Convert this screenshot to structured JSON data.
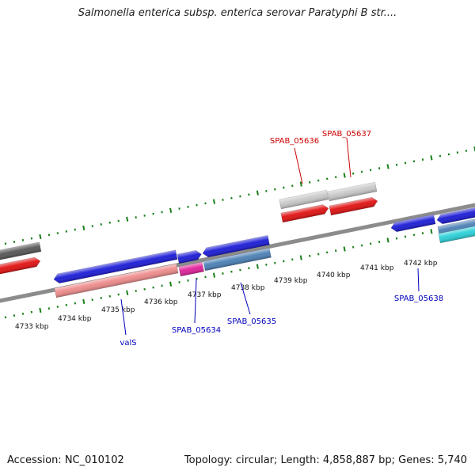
{
  "title": "Salmonella enterica subsp. enterica serovar Paratyphi B str....",
  "footer": {
    "accession": "Accession: NC_010102",
    "summary": "Topology: circular; Length: 4,858,887 bp; Genes: 5,740"
  },
  "colors": {
    "backbone": "#8c8c8c",
    "tick": "#1a7f1a",
    "forward_label": "#cc0000",
    "reverse_label": "#0000bb",
    "blue": "#1a1ad6",
    "red": "#e01010",
    "grey": "#c8c8c8",
    "dark_grey": "#555555",
    "pink": "#ee8a8a",
    "magenta": "#e0209a",
    "steel": "#4a7fb5",
    "cyan": "#2ad0d8"
  },
  "scale": {
    "unit": "kbp",
    "tick_labels": [
      "4733 kbp",
      "4734 kbp",
      "4735 kbp",
      "4736 kbp",
      "4737 kbp",
      "4738 kbp",
      "4739 kbp",
      "4740 kbp",
      "4741 kbp",
      "4742 kbp"
    ]
  },
  "gene_labels": {
    "forward": [
      "SPAB_05636",
      "SPAB_05637"
    ],
    "reverse": [
      "valS",
      "SPAB_05634",
      "SPAB_05635",
      "SPAB_05638"
    ]
  }
}
